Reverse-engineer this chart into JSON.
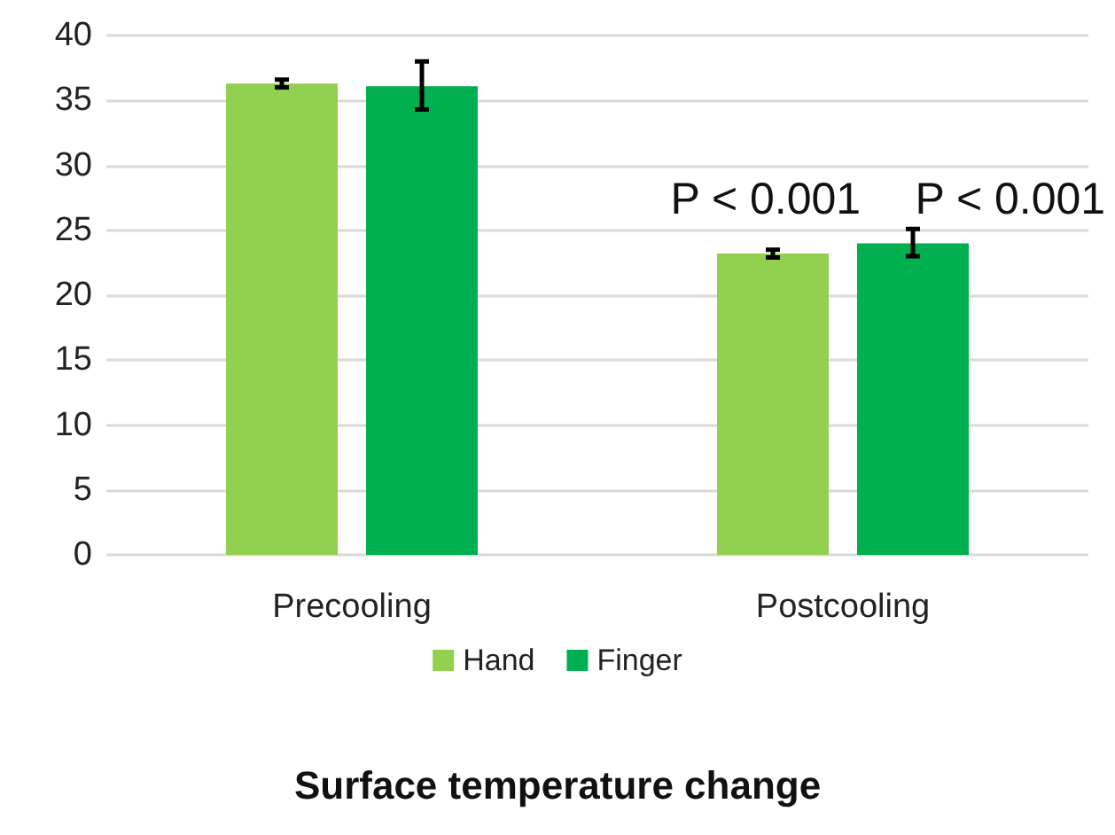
{
  "chart_data": {
    "type": "bar",
    "title": "Surface temperature change",
    "categories": [
      "Precooling",
      "Postcooling"
    ],
    "series": [
      {
        "name": "Hand",
        "color": "#92d050",
        "values": [
          36.3,
          23.2
        ],
        "errors": [
          0.3,
          0.3
        ]
      },
      {
        "name": "Finger",
        "color": "#00b050",
        "values": [
          36.1,
          24.0
        ],
        "errors": [
          [
            34.3,
            38.0
          ],
          [
            23.0,
            25.1
          ]
        ]
      }
    ],
    "annotations": [
      "P < 0.001",
      "P < 0.001"
    ],
    "ylim": [
      0,
      40
    ],
    "yticks": [
      0,
      5,
      10,
      15,
      20,
      25,
      30,
      35,
      40
    ],
    "grid": "y",
    "legend": "bottom"
  }
}
